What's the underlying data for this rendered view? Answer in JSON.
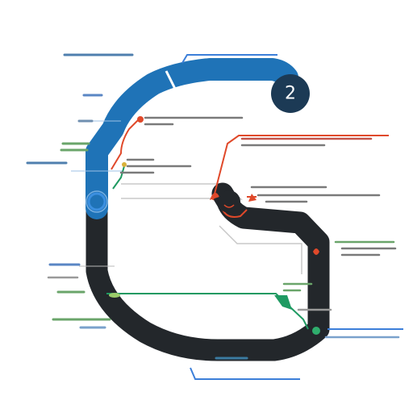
{
  "badge": {
    "number": "2",
    "fill": "#1c3a55"
  },
  "colors": {
    "track_dark": "#23272b",
    "track_blue": "#1f73b7",
    "accent_red": "#e0492a",
    "accent_green": "#1f9a62",
    "accent_blue_line": "#3c7fd9",
    "gray_line": "#bdbdbd",
    "ring_blue": "#3b8fe0"
  },
  "marker": {
    "icon": "ring-marker-icon"
  }
}
